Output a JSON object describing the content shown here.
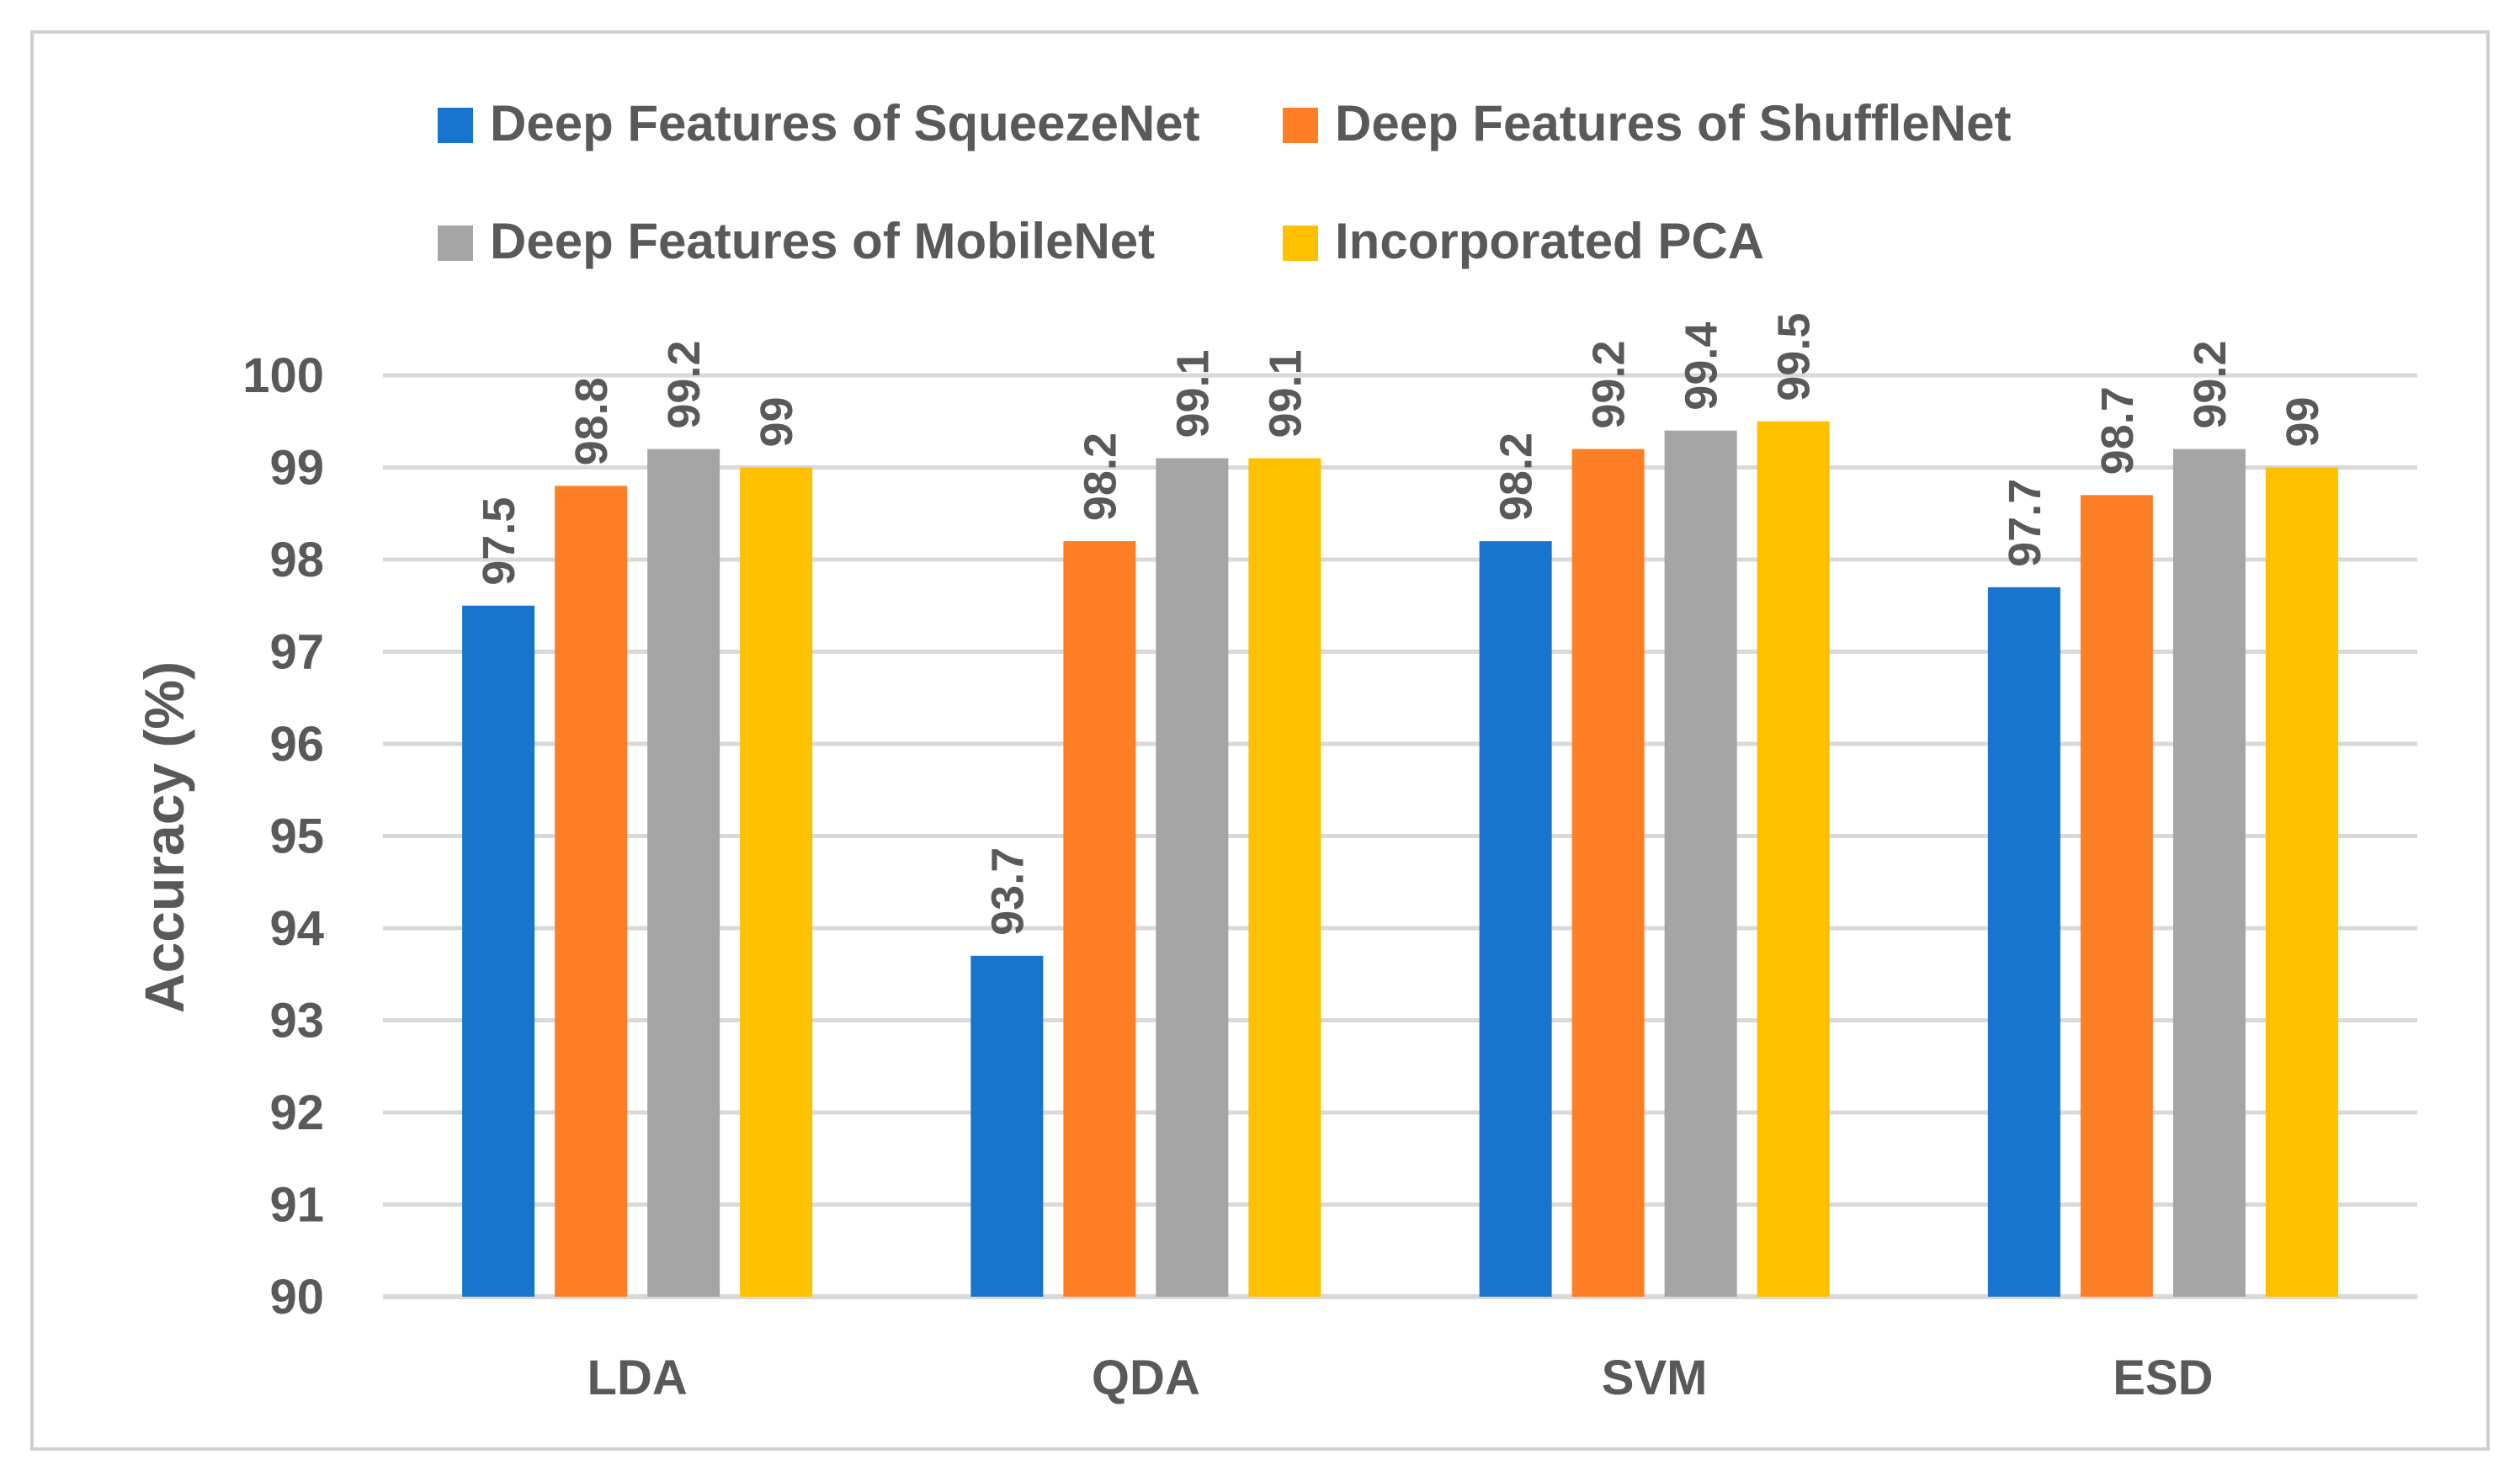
{
  "chart_data": {
    "type": "bar",
    "title": "",
    "xlabel": "",
    "ylabel": "Accuracy (%)",
    "ylim": [
      90,
      100
    ],
    "yticks": [
      90,
      91,
      92,
      93,
      94,
      95,
      96,
      97,
      98,
      99,
      100
    ],
    "grid": true,
    "legend_position": "top",
    "categories": [
      "LDA",
      "QDA",
      "SVM",
      "ESD"
    ],
    "series": [
      {
        "name": "Deep Features of SqueezeNet",
        "color": "#1874cd",
        "values": [
          97.5,
          93.7,
          98.2,
          97.7
        ],
        "labels": [
          "97.5",
          "93.7",
          "98.2",
          "97.7"
        ]
      },
      {
        "name": "Deep Features of ShuffleNet",
        "color": "#ff7f27",
        "values": [
          98.8,
          98.2,
          99.2,
          98.7
        ],
        "labels": [
          "98.8",
          "98.2",
          "99.2",
          "98.7"
        ]
      },
      {
        "name": "Deep Features of MobileNet",
        "color": "#a5a5a5",
        "values": [
          99.2,
          99.1,
          99.4,
          99.2
        ],
        "labels": [
          "99.2",
          "99.1",
          "99.4",
          "99.2"
        ]
      },
      {
        "name": "Incorporated PCA",
        "color": "#ffc000",
        "values": [
          99,
          99.1,
          99.5,
          99
        ],
        "labels": [
          "99",
          "99.1",
          "99.5",
          "99"
        ]
      }
    ]
  }
}
